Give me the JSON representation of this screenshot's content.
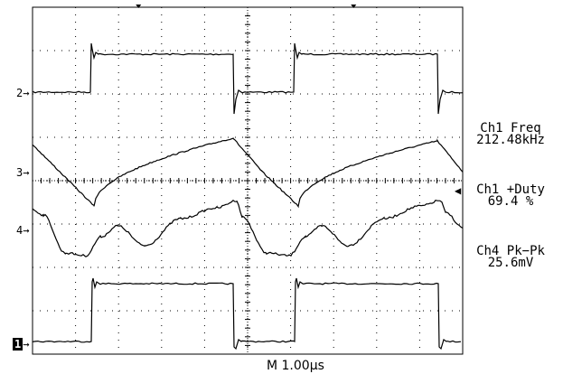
{
  "channel_markers": [
    {
      "id": "ch2",
      "label": "2"
    },
    {
      "id": "ch3",
      "label": "3"
    },
    {
      "id": "ch4",
      "label": "4"
    },
    {
      "id": "ch1",
      "label": "1"
    }
  ],
  "measurements": {
    "ch1_freq_label": "Ch1 Freq",
    "ch1_freq_value": "212.48kHz",
    "ch1_duty_label": "Ch1 +Duty",
    "ch1_duty_value": "69.4 %",
    "ch4_pkpk_label": "Ch4 Pk−Pk",
    "ch4_pkpk_value": "25.6mV"
  },
  "timebase": "M 1.00µs",
  "colors": {
    "background": "#ffffff",
    "trace": "#000000",
    "grid": "#000000"
  }
}
